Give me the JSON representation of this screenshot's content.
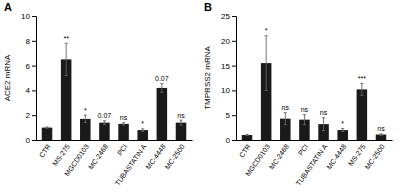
{
  "chart_data": [
    {
      "type": "bar",
      "title": "A",
      "ylabel": "ACE2 mRNA",
      "categories": [
        "CTR",
        "MS-275",
        "MGCD0103",
        "MC-2468",
        "PCI",
        "TUBASTATIN A",
        "MC-4448",
        "MC-2500"
      ],
      "values": [
        1.0,
        6.5,
        1.7,
        1.4,
        1.3,
        0.8,
        4.2,
        1.4
      ],
      "errors": [
        0.05,
        1.3,
        0.3,
        0.15,
        0.1,
        0.1,
        0.35,
        0.2
      ],
      "annotations": [
        null,
        "**",
        "*",
        "0.07",
        "ns",
        "*",
        "0.07",
        "ns"
      ],
      "ylim": [
        0,
        10
      ],
      "yticks": [
        0,
        2,
        4,
        6,
        8,
        10
      ],
      "color": "#1a1a1a"
    },
    {
      "type": "bar",
      "title": "B",
      "ylabel": "TMPRSS2 mRNA",
      "categories": [
        "CTR",
        "MGCD0103",
        "MC-2468",
        "PCI",
        "TUBASTATIN A",
        "MC-4448",
        "MS-275",
        "MC-2500"
      ],
      "values": [
        1.0,
        15.5,
        4.3,
        4.1,
        3.2,
        2.0,
        10.2,
        1.1
      ],
      "errors": [
        0.1,
        5.5,
        1.2,
        1.0,
        1.3,
        0.3,
        1.2,
        0.15
      ],
      "annotations": [
        null,
        "*",
        "ns",
        "ns",
        "ns",
        "*",
        "***",
        "ns"
      ],
      "ylim": [
        0,
        25
      ],
      "yticks": [
        0,
        5,
        10,
        15,
        20,
        25
      ],
      "color": "#1a1a1a"
    }
  ]
}
